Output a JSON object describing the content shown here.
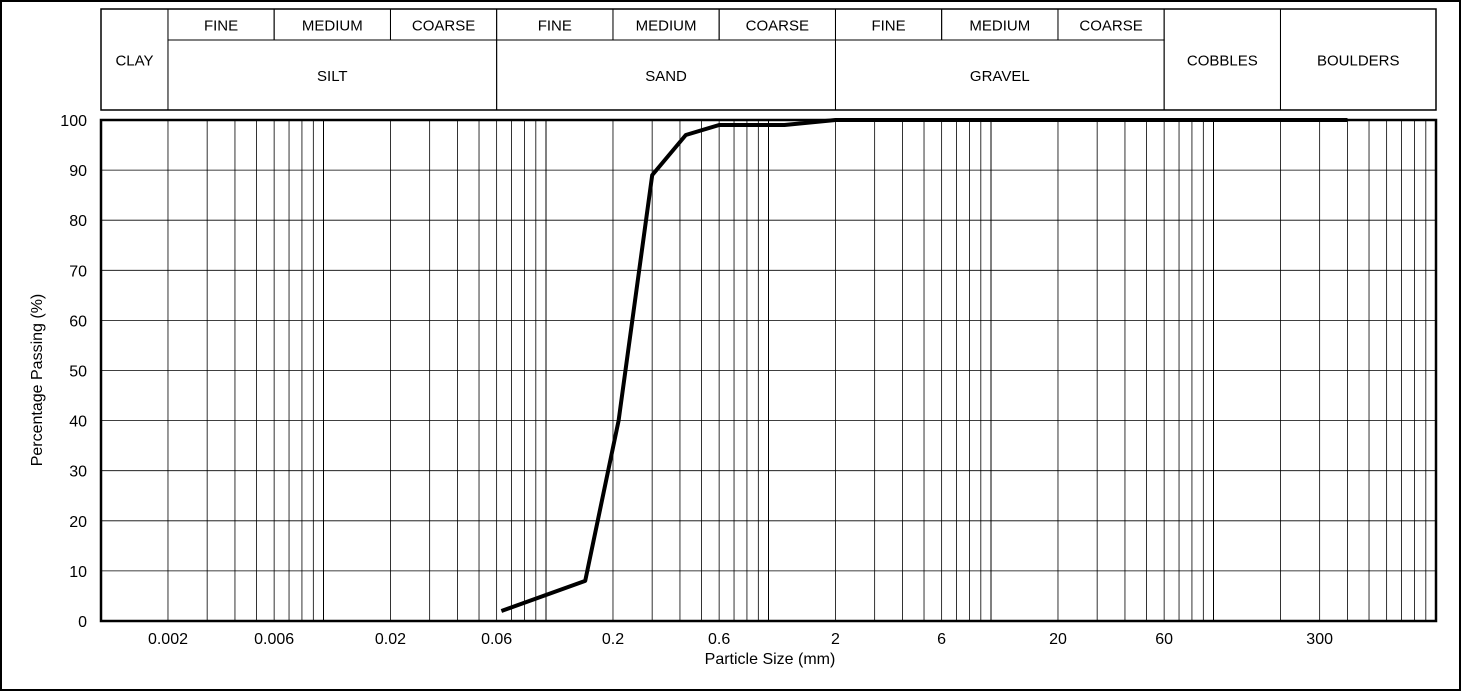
{
  "chart_data": {
    "type": "line",
    "title": "",
    "xlabel": "Particle Size (mm)",
    "ylabel": "Percentage Passing (%)",
    "x_scale": "log",
    "xlim": [
      0.001,
      1000
    ],
    "ylim": [
      0,
      100
    ],
    "grid": true,
    "x_ticks": [
      {
        "value": 0.002,
        "label": "0.002"
      },
      {
        "value": 0.006,
        "label": "0.006"
      },
      {
        "value": 0.02,
        "label": "0.02"
      },
      {
        "value": 0.06,
        "label": "0.06"
      },
      {
        "value": 0.2,
        "label": "0.2"
      },
      {
        "value": 0.6,
        "label": "0.6"
      },
      {
        "value": 2,
        "label": "2"
      },
      {
        "value": 6,
        "label": "6"
      },
      {
        "value": 20,
        "label": "20"
      },
      {
        "value": 60,
        "label": "60"
      },
      {
        "value": 300,
        "label": "300"
      }
    ],
    "y_ticks": [
      {
        "value": 0,
        "label": "0"
      },
      {
        "value": 10,
        "label": "10"
      },
      {
        "value": 20,
        "label": "20"
      },
      {
        "value": 30,
        "label": "30"
      },
      {
        "value": 40,
        "label": "40"
      },
      {
        "value": 50,
        "label": "50"
      },
      {
        "value": 60,
        "label": "60"
      },
      {
        "value": 70,
        "label": "70"
      },
      {
        "value": 80,
        "label": "80"
      },
      {
        "value": 90,
        "label": "90"
      },
      {
        "value": 100,
        "label": "100"
      }
    ],
    "series": [
      {
        "color": "#000000",
        "points": [
          {
            "x": 0.063,
            "y": 2
          },
          {
            "x": 0.15,
            "y": 8
          },
          {
            "x": 0.212,
            "y": 40
          },
          {
            "x": 0.3,
            "y": 89
          },
          {
            "x": 0.425,
            "y": 97
          },
          {
            "x": 0.6,
            "y": 99
          },
          {
            "x": 1.18,
            "y": 99
          },
          {
            "x": 2,
            "y": 100
          },
          {
            "x": 400,
            "y": 100
          }
        ]
      }
    ],
    "classification": {
      "sub_row": [
        {
          "label": "CLAY",
          "from": 0.001,
          "to": 0.002,
          "merged": true
        },
        {
          "label": "FINE",
          "from": 0.002,
          "to": 0.006
        },
        {
          "label": "MEDIUM",
          "from": 0.006,
          "to": 0.02
        },
        {
          "label": "COARSE",
          "from": 0.02,
          "to": 0.06
        },
        {
          "label": "FINE",
          "from": 0.06,
          "to": 0.2
        },
        {
          "label": "MEDIUM",
          "from": 0.2,
          "to": 0.6
        },
        {
          "label": "COARSE",
          "from": 0.6,
          "to": 2
        },
        {
          "label": "FINE",
          "from": 2,
          "to": 6
        },
        {
          "label": "MEDIUM",
          "from": 6,
          "to": 20
        },
        {
          "label": "COARSE",
          "from": 20,
          "to": 60
        },
        {
          "label": "COBBLES",
          "from": 60,
          "to": 200,
          "merged": true
        },
        {
          "label": "BOULDERS",
          "from": 200,
          "to": 1000,
          "merged": true
        }
      ],
      "main_row": [
        {
          "label": "SILT",
          "from": 0.002,
          "to": 0.06
        },
        {
          "label": "SAND",
          "from": 0.06,
          "to": 2
        },
        {
          "label": "GRAVEL",
          "from": 2,
          "to": 60
        }
      ]
    }
  }
}
